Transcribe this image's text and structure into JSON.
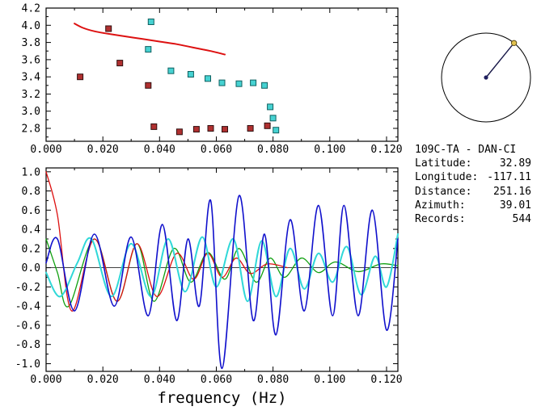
{
  "window": {
    "background": "#ffffff",
    "axis_color": "#000000"
  },
  "station_panel": {
    "title": "109C-TA - DAN-CI",
    "fields": [
      {
        "label": "Latitude:",
        "value": "32.89"
      },
      {
        "label": "Longitude:",
        "value": "-117.11"
      },
      {
        "label": "Distance:",
        "value": "251.16"
      },
      {
        "label": "Azimuth:",
        "value": "39.01"
      },
      {
        "label": "Records:",
        "value": "544"
      }
    ]
  },
  "azimuth_dial": {
    "azimuth_deg": 39.01,
    "ring_color": "#000000",
    "needle_color": "#181848",
    "center_dot_color": "#202060",
    "end_marker_fill": "#e2c24e",
    "end_marker_stroke": "#5f4f1a"
  },
  "chart_data": [
    {
      "id": "dispersion",
      "type": "scatter",
      "title": "",
      "xlabel": "",
      "ylabel": "",
      "xlim": [
        0,
        0.124
      ],
      "ylim": [
        2.65,
        4.2
      ],
      "grid": false,
      "axis_color": "#000000",
      "xticks": {
        "values": [
          0,
          0.02,
          0.04,
          0.06,
          0.08,
          0.1,
          0.12
        ],
        "labels": [
          "0.000",
          "0.020",
          "0.040",
          "0.060",
          "0.080",
          "0.100",
          "0.120"
        ],
        "minor_step": 0.01
      },
      "yticks": {
        "values": [
          2.8,
          3.0,
          3.2,
          3.4,
          3.6,
          3.8,
          4.0,
          4.2
        ],
        "labels": [
          "2.8",
          "3.0",
          "3.2",
          "3.4",
          "3.6",
          "3.8",
          "4.0",
          "4.2"
        ],
        "minor_step": 0.1
      },
      "series": [
        {
          "name": "reference-dispersion-curve",
          "style": "line",
          "color": "#dd1111",
          "width": 2,
          "points": [
            [
              0.01,
              4.02
            ],
            [
              0.013,
              3.97
            ],
            [
              0.017,
              3.93
            ],
            [
              0.022,
              3.9
            ],
            [
              0.028,
              3.87
            ],
            [
              0.034,
              3.84
            ],
            [
              0.04,
              3.81
            ],
            [
              0.046,
              3.78
            ],
            [
              0.052,
              3.74
            ],
            [
              0.058,
              3.7
            ],
            [
              0.063,
              3.66
            ]
          ]
        },
        {
          "name": "picks-red",
          "style": "scatter",
          "color": "#b03030",
          "edge": "#301010",
          "points": [
            [
              0.012,
              3.4
            ],
            [
              0.022,
              3.96
            ],
            [
              0.026,
              3.56
            ],
            [
              0.036,
              3.3
            ],
            [
              0.038,
              2.82
            ],
            [
              0.047,
              2.76
            ],
            [
              0.053,
              2.79
            ],
            [
              0.058,
              2.8
            ],
            [
              0.063,
              2.79
            ],
            [
              0.072,
              2.8
            ],
            [
              0.078,
              2.83
            ]
          ]
        },
        {
          "name": "picks-cyan",
          "style": "scatter",
          "color": "#46d2d2",
          "edge": "#106060",
          "points": [
            [
              0.036,
              3.72
            ],
            [
              0.037,
              4.04
            ],
            [
              0.044,
              3.47
            ],
            [
              0.051,
              3.43
            ],
            [
              0.057,
              3.38
            ],
            [
              0.062,
              3.33
            ],
            [
              0.068,
              3.32
            ],
            [
              0.073,
              3.33
            ],
            [
              0.077,
              3.3
            ],
            [
              0.079,
              3.05
            ],
            [
              0.08,
              2.92
            ],
            [
              0.081,
              2.78
            ]
          ]
        }
      ]
    },
    {
      "id": "correlation",
      "type": "line",
      "title": "",
      "xlabel": "frequency (Hz)",
      "ylabel": "",
      "xlim": [
        0,
        0.124
      ],
      "ylim": [
        -1.08,
        1.04
      ],
      "grid": false,
      "zero_line": true,
      "axis_color": "#000000",
      "xticks": {
        "values": [
          0,
          0.02,
          0.04,
          0.06,
          0.08,
          0.1,
          0.12
        ],
        "labels": [
          "0.000",
          "0.020",
          "0.040",
          "0.060",
          "0.080",
          "0.100",
          "0.120"
        ],
        "minor_step": 0.01
      },
      "yticks": {
        "values": [
          -1.0,
          -0.8,
          -0.6,
          -0.4,
          -0.2,
          0.0,
          0.2,
          0.4,
          0.6,
          0.8,
          1.0
        ],
        "labels": [
          "-1.0",
          "-0.8",
          "-0.6",
          "-0.4",
          "-0.2",
          "0.0",
          "0.2",
          "0.4",
          "0.6",
          "0.8",
          "1.0"
        ],
        "minor_step": 0.1
      },
      "series": [
        {
          "name": "trace-green",
          "style": "line",
          "color": "#10a010",
          "width": 1.3,
          "points": [
            [
              0,
              0.3
            ],
            [
              0.004,
              -0.05
            ],
            [
              0.008,
              -0.4
            ],
            [
              0.017,
              0.3
            ],
            [
              0.025,
              -0.35
            ],
            [
              0.032,
              0.25
            ],
            [
              0.038,
              -0.35
            ],
            [
              0.045,
              0.2
            ],
            [
              0.051,
              -0.15
            ],
            [
              0.057,
              0.16
            ],
            [
              0.063,
              -0.12
            ],
            [
              0.068,
              0.2
            ],
            [
              0.074,
              -0.15
            ],
            [
              0.079,
              0.1
            ],
            [
              0.084,
              -0.1
            ],
            [
              0.09,
              0.1
            ],
            [
              0.096,
              -0.05
            ],
            [
              0.102,
              0.06
            ],
            [
              0.11,
              -0.04
            ],
            [
              0.118,
              0.04
            ],
            [
              0.124,
              0.02
            ]
          ]
        },
        {
          "name": "trace-red",
          "style": "line",
          "color": "#dd1010",
          "width": 1.3,
          "points": [
            [
              0,
              1.0
            ],
            [
              0.004,
              0.55
            ],
            [
              0.009,
              -0.45
            ],
            [
              0.017,
              0.3
            ],
            [
              0.025,
              -0.35
            ],
            [
              0.032,
              0.25
            ],
            [
              0.039,
              -0.3
            ],
            [
              0.046,
              0.15
            ],
            [
              0.052,
              -0.12
            ],
            [
              0.057,
              0.15
            ],
            [
              0.062,
              -0.1
            ],
            [
              0.067,
              0.1
            ],
            [
              0.072,
              -0.06
            ],
            [
              0.078,
              0.04
            ],
            [
              0.085,
              0.0
            ]
          ]
        },
        {
          "name": "trace-cyan",
          "style": "line",
          "color": "#30d8d8",
          "width": 2,
          "points": [
            [
              0,
              -0.05
            ],
            [
              0.005,
              -0.3
            ],
            [
              0.011,
              0.05
            ],
            [
              0.016,
              0.3
            ],
            [
              0.023,
              -0.3
            ],
            [
              0.03,
              0.25
            ],
            [
              0.037,
              -0.3
            ],
            [
              0.043,
              0.3
            ],
            [
              0.049,
              -0.25
            ],
            [
              0.055,
              0.32
            ],
            [
              0.06,
              -0.2
            ],
            [
              0.066,
              0.3
            ],
            [
              0.071,
              -0.35
            ],
            [
              0.076,
              0.28
            ],
            [
              0.081,
              -0.3
            ],
            [
              0.086,
              0.2
            ],
            [
              0.091,
              -0.22
            ],
            [
              0.096,
              0.15
            ],
            [
              0.101,
              -0.15
            ],
            [
              0.106,
              0.22
            ],
            [
              0.111,
              -0.28
            ],
            [
              0.116,
              0.12
            ],
            [
              0.12,
              -0.2
            ],
            [
              0.124,
              0.35
            ]
          ]
        },
        {
          "name": "trace-blue",
          "style": "line",
          "color": "#1010cc",
          "width": 1.6,
          "points": [
            [
              0,
              0.05
            ],
            [
              0.004,
              0.3
            ],
            [
              0.01,
              -0.45
            ],
            [
              0.017,
              0.35
            ],
            [
              0.024,
              -0.4
            ],
            [
              0.03,
              0.32
            ],
            [
              0.036,
              -0.5
            ],
            [
              0.041,
              0.45
            ],
            [
              0.046,
              -0.55
            ],
            [
              0.05,
              0.3
            ],
            [
              0.054,
              -0.4
            ],
            [
              0.058,
              0.7
            ],
            [
              0.062,
              -1.05
            ],
            [
              0.068,
              0.75
            ],
            [
              0.073,
              -0.55
            ],
            [
              0.077,
              0.35
            ],
            [
              0.081,
              -0.7
            ],
            [
              0.086,
              0.5
            ],
            [
              0.091,
              -0.45
            ],
            [
              0.096,
              0.65
            ],
            [
              0.101,
              -0.5
            ],
            [
              0.105,
              0.65
            ],
            [
              0.11,
              -0.5
            ],
            [
              0.115,
              0.6
            ],
            [
              0.12,
              -0.65
            ],
            [
              0.124,
              0.3
            ]
          ]
        }
      ]
    }
  ]
}
